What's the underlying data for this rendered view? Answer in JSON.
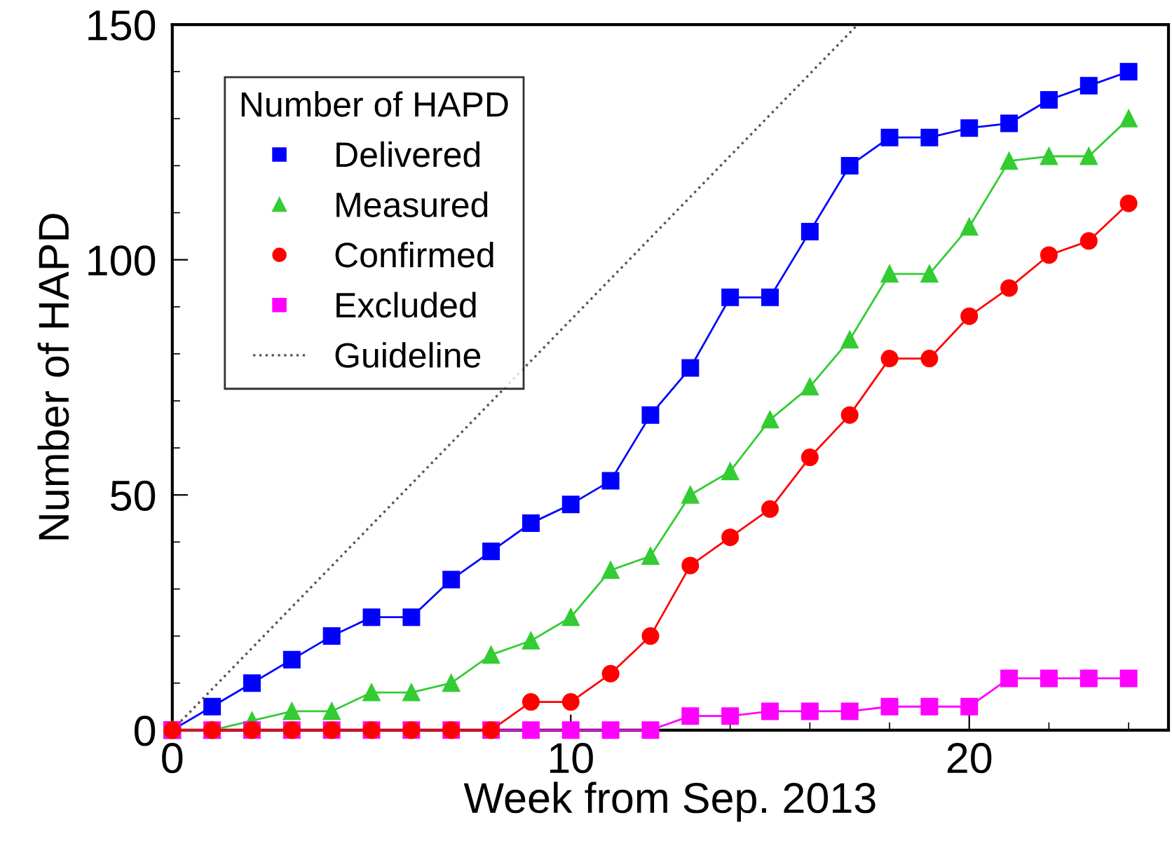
{
  "chart_data": {
    "type": "line",
    "xlabel": "Week from Sep. 2013",
    "ylabel": "Number of HAPD",
    "legend_title": "Number of HAPD",
    "legend": "top left",
    "grid": false,
    "xlim": [
      0,
      25
    ],
    "ylim": [
      0,
      150
    ],
    "xticks": [
      0,
      10,
      20
    ],
    "yticks": [
      0,
      50,
      100,
      150
    ],
    "x": [
      0,
      1,
      2,
      3,
      4,
      5,
      6,
      7,
      8,
      9,
      10,
      11,
      12,
      13,
      14,
      15,
      16,
      17,
      18,
      19,
      20,
      21,
      22,
      23,
      24
    ],
    "series": [
      {
        "name": "Delivered",
        "color": "#0000ff",
        "marker": "square",
        "values": [
          0,
          5,
          10,
          15,
          20,
          24,
          24,
          32,
          38,
          44,
          48,
          53,
          67,
          77,
          92,
          92,
          106,
          120,
          126,
          126,
          128,
          129,
          134,
          137,
          140
        ]
      },
      {
        "name": "Measured",
        "color": "#33cc33",
        "marker": "triangle",
        "values": [
          0,
          0,
          2,
          4,
          4,
          8,
          8,
          10,
          16,
          19,
          24,
          34,
          37,
          50,
          55,
          66,
          73,
          83,
          97,
          97,
          107,
          121,
          122,
          122,
          130
        ]
      },
      {
        "name": "Confirmed",
        "color": "#ff0000",
        "marker": "circle",
        "values": [
          0,
          0,
          0,
          0,
          0,
          0,
          0,
          0,
          0,
          6,
          6,
          12,
          20,
          35,
          41,
          47,
          58,
          67,
          79,
          79,
          88,
          94,
          101,
          104,
          112
        ]
      },
      {
        "name": "Excluded",
        "color": "#ff00ff",
        "marker": "square",
        "values": [
          0,
          0,
          0,
          0,
          0,
          0,
          0,
          0,
          0,
          0,
          0,
          0,
          0,
          3,
          3,
          4,
          4,
          4,
          5,
          5,
          5,
          11,
          11,
          11,
          11
        ]
      },
      {
        "name": "Guideline",
        "color": "#555555",
        "marker": "none",
        "line_style": "dotted",
        "x": [
          0,
          17.2
        ],
        "values": [
          0,
          150
        ]
      }
    ]
  }
}
